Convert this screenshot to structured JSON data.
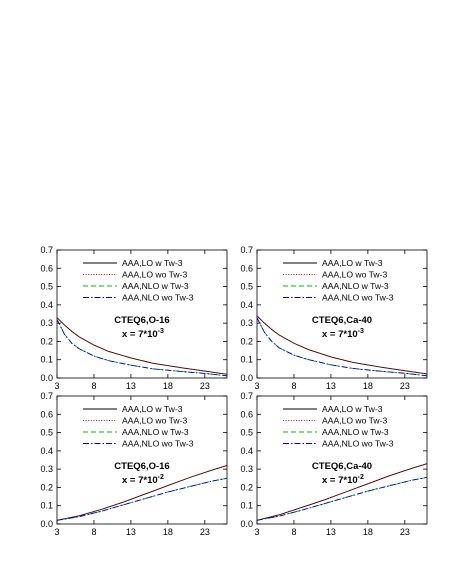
{
  "chart_data": [
    {
      "type": "line",
      "xlim": [
        3,
        26
      ],
      "ylim": [
        0,
        0.7
      ],
      "xticks": [
        3,
        8,
        13,
        18,
        23
      ],
      "yticks": [
        0.0,
        0.1,
        0.2,
        0.3,
        0.4,
        0.5,
        0.6,
        0.7
      ],
      "legend_position": "top-right",
      "annotation": {
        "line1": "CTEQ6,O-16",
        "line2": "x = 7*10",
        "exponent": "-3"
      },
      "x": [
        3,
        4,
        5,
        6,
        8,
        10,
        13,
        16,
        20,
        23,
        26
      ],
      "series": [
        {
          "name": "AAA,LO w Tw-3",
          "color": "#000000",
          "dash": "solid",
          "values": [
            0.33,
            0.29,
            0.255,
            0.225,
            0.18,
            0.145,
            0.11,
            0.08,
            0.055,
            0.038,
            0.02
          ]
        },
        {
          "name": "AAA,LO wo Tw-3",
          "color": "#dd0000",
          "dash": "dot",
          "values": [
            0.33,
            0.29,
            0.255,
            0.225,
            0.18,
            0.145,
            0.11,
            0.08,
            0.055,
            0.038,
            0.02
          ]
        },
        {
          "name": "AAA,NLO w Tw-3",
          "color": "#00bb00",
          "dash": "dash",
          "values": [
            0.32,
            0.24,
            0.19,
            0.16,
            0.12,
            0.095,
            0.07,
            0.05,
            0.035,
            0.025,
            0.012
          ]
        },
        {
          "name": "AAA,NLO wo Tw-3",
          "color": "#0000cc",
          "dash": "dashdot",
          "values": [
            0.32,
            0.24,
            0.19,
            0.16,
            0.12,
            0.095,
            0.07,
            0.05,
            0.035,
            0.025,
            0.012
          ]
        }
      ]
    },
    {
      "type": "line",
      "xlim": [
        3,
        26
      ],
      "ylim": [
        0,
        0.7
      ],
      "xticks": [
        3,
        8,
        13,
        18,
        23
      ],
      "yticks": [
        0.0,
        0.1,
        0.2,
        0.3,
        0.4,
        0.5,
        0.6,
        0.7
      ],
      "legend_position": "top-right",
      "annotation": {
        "line1": "CTEQ6,Ca-40",
        "line2": "x = 7*10",
        "exponent": "-3"
      },
      "x": [
        3,
        4,
        5,
        6,
        8,
        10,
        13,
        16,
        20,
        23,
        26
      ],
      "series": [
        {
          "name": "AAA,LO w Tw-3",
          "color": "#000000",
          "dash": "solid",
          "values": [
            0.34,
            0.3,
            0.265,
            0.235,
            0.19,
            0.155,
            0.115,
            0.085,
            0.058,
            0.04,
            0.022
          ]
        },
        {
          "name": "AAA,LO wo Tw-3",
          "color": "#dd0000",
          "dash": "dot",
          "values": [
            0.34,
            0.3,
            0.265,
            0.235,
            0.19,
            0.155,
            0.115,
            0.085,
            0.058,
            0.04,
            0.022
          ]
        },
        {
          "name": "AAA,NLO w Tw-3",
          "color": "#00bb00",
          "dash": "dash",
          "values": [
            0.33,
            0.25,
            0.2,
            0.165,
            0.125,
            0.1,
            0.072,
            0.052,
            0.036,
            0.026,
            0.012
          ]
        },
        {
          "name": "AAA,NLO wo Tw-3",
          "color": "#0000cc",
          "dash": "dashdot",
          "values": [
            0.33,
            0.25,
            0.2,
            0.165,
            0.125,
            0.1,
            0.072,
            0.052,
            0.036,
            0.026,
            0.012
          ]
        }
      ]
    },
    {
      "type": "line",
      "xlim": [
        3,
        26
      ],
      "ylim": [
        0,
        0.7
      ],
      "xticks": [
        3,
        8,
        13,
        18,
        23
      ],
      "yticks": [
        0.0,
        0.1,
        0.2,
        0.3,
        0.4,
        0.5,
        0.6,
        0.7
      ],
      "legend_position": "top-right",
      "annotation": {
        "line1": "CTEQ6,O-16",
        "line2": "x = 7*10",
        "exponent": "-2"
      },
      "x": [
        3,
        6,
        9,
        12,
        15,
        18,
        21,
        24,
        26
      ],
      "series": [
        {
          "name": "AAA,LO w Tw-3",
          "color": "#000000",
          "dash": "solid",
          "values": [
            0.02,
            0.045,
            0.08,
            0.12,
            0.165,
            0.21,
            0.255,
            0.295,
            0.32
          ]
        },
        {
          "name": "AAA,LO wo Tw-3",
          "color": "#dd0000",
          "dash": "dot",
          "values": [
            0.02,
            0.045,
            0.08,
            0.12,
            0.165,
            0.21,
            0.255,
            0.295,
            0.32
          ]
        },
        {
          "name": "AAA,NLO w Tw-3",
          "color": "#00bb00",
          "dash": "dash",
          "values": [
            0.02,
            0.04,
            0.07,
            0.105,
            0.14,
            0.175,
            0.205,
            0.235,
            0.25
          ]
        },
        {
          "name": "AAA,NLO wo Tw-3",
          "color": "#0000cc",
          "dash": "dashdot",
          "values": [
            0.02,
            0.04,
            0.07,
            0.105,
            0.14,
            0.175,
            0.205,
            0.235,
            0.25
          ]
        }
      ]
    },
    {
      "type": "line",
      "xlim": [
        3,
        26
      ],
      "ylim": [
        0,
        0.7
      ],
      "xticks": [
        3,
        8,
        13,
        18,
        23
      ],
      "yticks": [
        0.0,
        0.1,
        0.2,
        0.3,
        0.4,
        0.5,
        0.6,
        0.7
      ],
      "legend_position": "top-right",
      "annotation": {
        "line1": "CTEQ6,Ca-40",
        "line2": "x = 7*10",
        "exponent": "-2"
      },
      "x": [
        3,
        6,
        9,
        12,
        15,
        18,
        21,
        24,
        26
      ],
      "series": [
        {
          "name": "AAA,LO w Tw-3",
          "color": "#000000",
          "dash": "solid",
          "values": [
            0.02,
            0.05,
            0.09,
            0.13,
            0.175,
            0.22,
            0.265,
            0.305,
            0.33
          ]
        },
        {
          "name": "AAA,LO wo Tw-3",
          "color": "#dd0000",
          "dash": "dot",
          "values": [
            0.02,
            0.05,
            0.09,
            0.13,
            0.175,
            0.22,
            0.265,
            0.305,
            0.33
          ]
        },
        {
          "name": "AAA,NLO w Tw-3",
          "color": "#00bb00",
          "dash": "dash",
          "values": [
            0.02,
            0.043,
            0.075,
            0.11,
            0.145,
            0.18,
            0.21,
            0.24,
            0.255
          ]
        },
        {
          "name": "AAA,NLO wo Tw-3",
          "color": "#0000cc",
          "dash": "dashdot",
          "values": [
            0.02,
            0.043,
            0.075,
            0.11,
            0.145,
            0.18,
            0.21,
            0.24,
            0.255
          ]
        }
      ]
    }
  ]
}
